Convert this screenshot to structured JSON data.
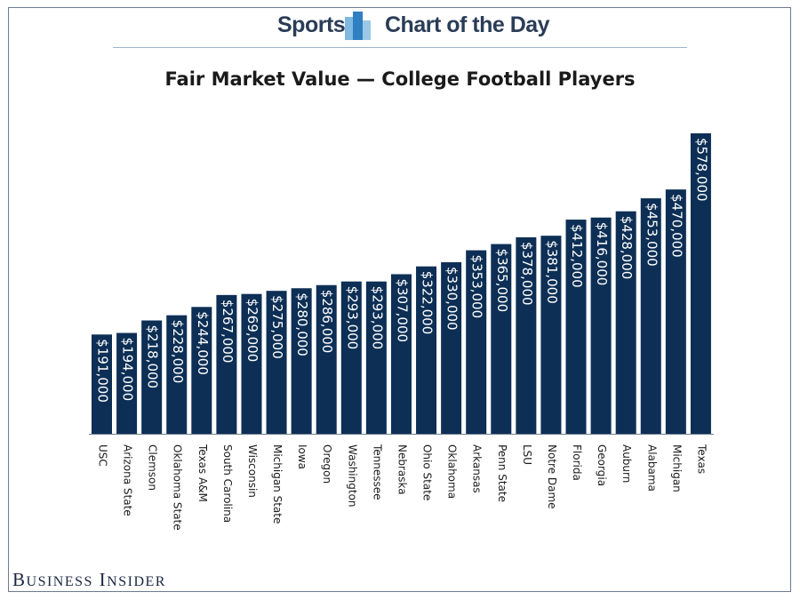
{
  "banner": {
    "left_label": "Sports",
    "right_label": "Chart of the Day"
  },
  "footer": {
    "brand_first": "B",
    "brand_first_rest": "USINESS",
    "brand_second": "I",
    "brand_second_rest": "NSIDER"
  },
  "colors": {
    "bar": "#0d2f55",
    "bar_label": "#ffffff",
    "frame": "#6b7b8f",
    "banner_accent": "#3a8ec9"
  },
  "chart_data": {
    "type": "bar",
    "title": "Fair Market Value — College Football Players",
    "xlabel": "",
    "ylabel": "",
    "ylim": [
      0,
      600000
    ],
    "grid": false,
    "categories": [
      "USC",
      "Arizona State",
      "Clemson",
      "Oklahoma State",
      "Texas A&M",
      "South Carolina",
      "Wisconsin",
      "Michigan State",
      "Iowa",
      "Oregon",
      "Washington",
      "Tennessee",
      "Nebraska",
      "Ohio State",
      "Oklahoma",
      "Arkansas",
      "Penn State",
      "LSU",
      "Notre Dame",
      "Florida",
      "Georgia",
      "Auburn",
      "Alabama",
      "Michigan",
      "Texas"
    ],
    "values": [
      191000,
      194000,
      218000,
      228000,
      244000,
      267000,
      269000,
      275000,
      280000,
      286000,
      293000,
      293000,
      307000,
      322000,
      330000,
      353000,
      365000,
      378000,
      381000,
      412000,
      416000,
      428000,
      453000,
      470000,
      578000
    ],
    "value_labels": [
      "$191,000",
      "$194,000",
      "$218,000",
      "$228,000",
      "$244,000",
      "$267,000",
      "$269,000",
      "$275,000",
      "$280,000",
      "$286,000",
      "$293,000",
      "$293,000",
      "$307,000",
      "$322,000",
      "$330,000",
      "$353,000",
      "$365,000",
      "$378,000",
      "$381,000",
      "$412,000",
      "$416,000",
      "$428,000",
      "$453,000",
      "$470,000",
      "$578,000"
    ]
  }
}
